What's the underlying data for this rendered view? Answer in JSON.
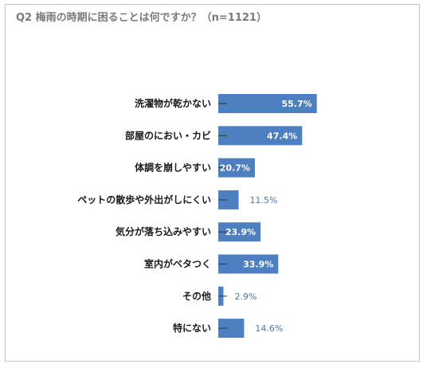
{
  "title": "Q2 梅雨の時期に困ることは何ですか？（n=1121）",
  "colors": {
    "bar": "#4e7fc0",
    "outside_label": "#4a78b8",
    "axis_tick": "#333333"
  },
  "chart_data": {
    "type": "bar",
    "orientation": "horizontal",
    "title": "Q2 梅雨の時期に困ることは何ですか？（n=1121）",
    "categories": [
      "洗濯物が乾かない",
      "部屋のにおい・カビ",
      "体調を崩しやすい",
      "ペットの散歩や外出がしにくい",
      "気分が落ち込みやすい",
      "室内がベタつく",
      "その他",
      "特にない"
    ],
    "values": [
      55.7,
      47.4,
      20.7,
      11.5,
      23.9,
      33.9,
      2.9,
      14.6
    ],
    "labels": [
      "55.7%",
      "47.4%",
      "20.7%",
      "11.5%",
      "23.9%",
      "33.9%",
      "2.9%",
      "14.6%"
    ],
    "unit": "%",
    "grid": false
  }
}
